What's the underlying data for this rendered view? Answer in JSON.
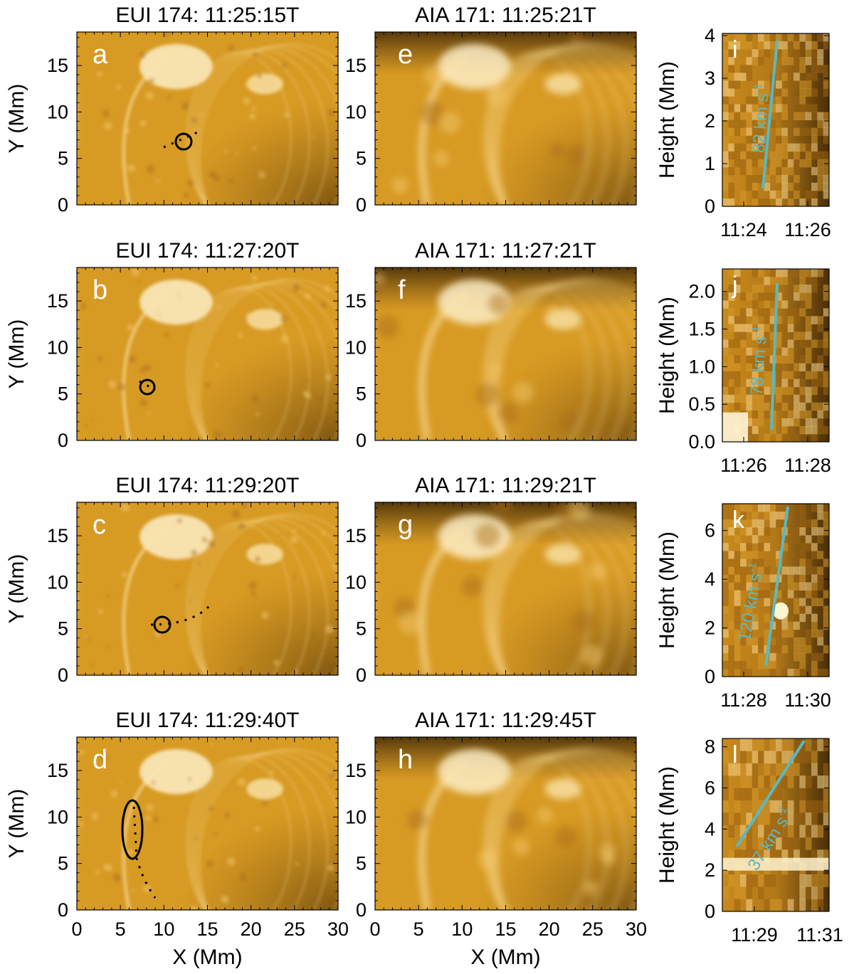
{
  "figure": {
    "rows": [
      {
        "eui": {
          "title": "EUI 174: 11:25:15T",
          "panel": "a"
        },
        "aia": {
          "title": "AIA 171: 11:25:21T",
          "panel": "e"
        },
        "td": {
          "panel": "i",
          "speed": "82 km s",
          "speed_exp": "-1",
          "yticks": [
            "0",
            "1",
            "2",
            "3",
            "4"
          ],
          "xticks": [
            "11:24",
            "11:26"
          ]
        }
      },
      {
        "eui": {
          "title": "EUI 174: 11:27:20T",
          "panel": "b"
        },
        "aia": {
          "title": "AIA 171: 11:27:21T",
          "panel": "f"
        },
        "td": {
          "panel": "j",
          "speed": "78 km s",
          "speed_exp": "-1",
          "yticks": [
            "0.0",
            "0.5",
            "1.0",
            "1.5",
            "2.0"
          ],
          "xticks": [
            "11:26",
            "11:28"
          ]
        }
      },
      {
        "eui": {
          "title": "EUI 174: 11:29:20T",
          "panel": "c"
        },
        "aia": {
          "title": "AIA 171: 11:29:21T",
          "panel": "g"
        },
        "td": {
          "panel": "k",
          "speed": "120 km s",
          "speed_exp": "-1",
          "yticks": [
            "0",
            "2",
            "4",
            "6"
          ],
          "xticks": [
            "11:28",
            "11:30"
          ]
        }
      },
      {
        "eui": {
          "title": "EUI 174: 11:29:40T",
          "panel": "d"
        },
        "aia": {
          "title": "AIA 171: 11:29:45T",
          "panel": "h"
        },
        "td": {
          "panel": "l",
          "speed": "37 km s",
          "speed_exp": "-1",
          "yticks": [
            "0",
            "2",
            "4",
            "6",
            "8"
          ],
          "xticks": [
            "11:29",
            "11:31"
          ]
        }
      }
    ],
    "map_axes": {
      "xlabel": "X (Mm)",
      "ylabel": "Y (Mm)",
      "xticks": [
        "0",
        "5",
        "10",
        "15",
        "20",
        "25",
        "30"
      ],
      "yticks": [
        "0",
        "5",
        "10",
        "15"
      ]
    },
    "td_axes": {
      "ylabel": "Height (Mm)"
    },
    "colors": {
      "fit_line": "#5bb8c0",
      "image_base": "#d99a1c",
      "image_bright": "#fff6e0"
    }
  }
}
